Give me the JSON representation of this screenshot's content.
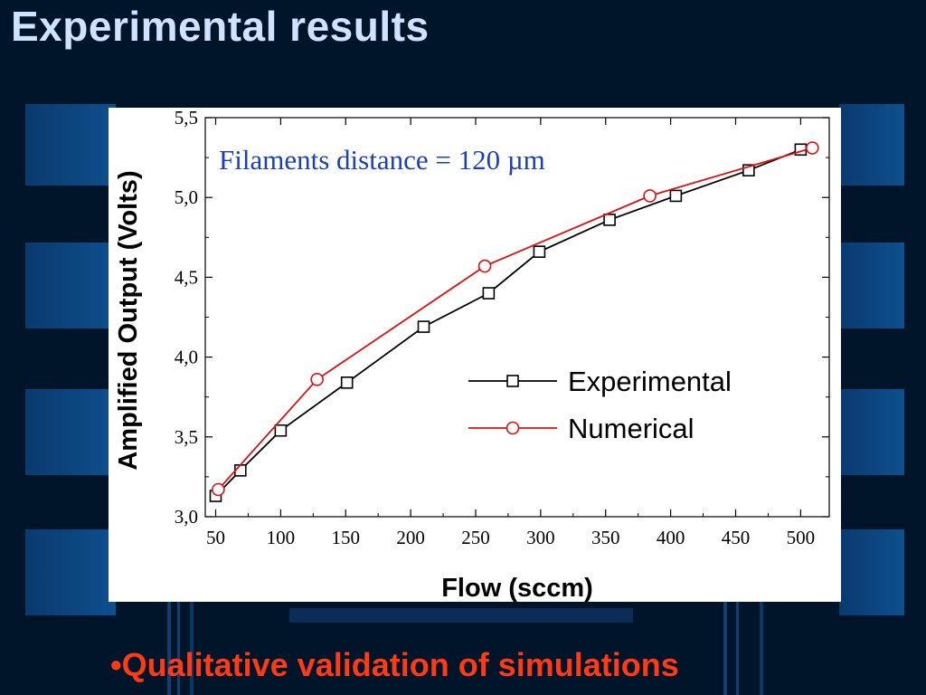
{
  "slide": {
    "title": "Experimental results",
    "bullet_marker": "•",
    "bullet_text": "Qualitative validation of simulations",
    "background_color": "#00142a",
    "title_color": "#cfe2ff",
    "bullet_color": "#ff3a14"
  },
  "chart_data": {
    "type": "line",
    "annotation": "Filaments distance =  120 µm",
    "xlabel": "Flow (sccm)",
    "ylabel": "Amplified Output (Volts)",
    "xlim": [
      42,
      522
    ],
    "ylim": [
      3.0,
      5.5
    ],
    "xticks": [
      50,
      100,
      150,
      200,
      250,
      300,
      350,
      400,
      450,
      500
    ],
    "yticks": [
      3.0,
      3.5,
      4.0,
      4.5,
      5.0,
      5.5
    ],
    "ytick_labels": [
      "3,0",
      "3,5",
      "4,0",
      "4,5",
      "5,0",
      "5,5"
    ],
    "legend_position": "center-right",
    "grid": false,
    "series": [
      {
        "name": "Experimental",
        "marker": "square",
        "color": "#000000",
        "x": [
          50,
          69,
          100,
          151,
          210,
          260,
          299,
          353,
          404,
          460,
          500
        ],
        "y": [
          3.13,
          3.29,
          3.54,
          3.84,
          4.19,
          4.4,
          4.66,
          4.86,
          5.01,
          5.17,
          5.3
        ]
      },
      {
        "name": "Numerical",
        "marker": "circle",
        "color": "#dd1111",
        "x": [
          52,
          128,
          257,
          384,
          509
        ],
        "y": [
          3.17,
          3.86,
          4.57,
          5.01,
          5.31
        ]
      }
    ]
  }
}
